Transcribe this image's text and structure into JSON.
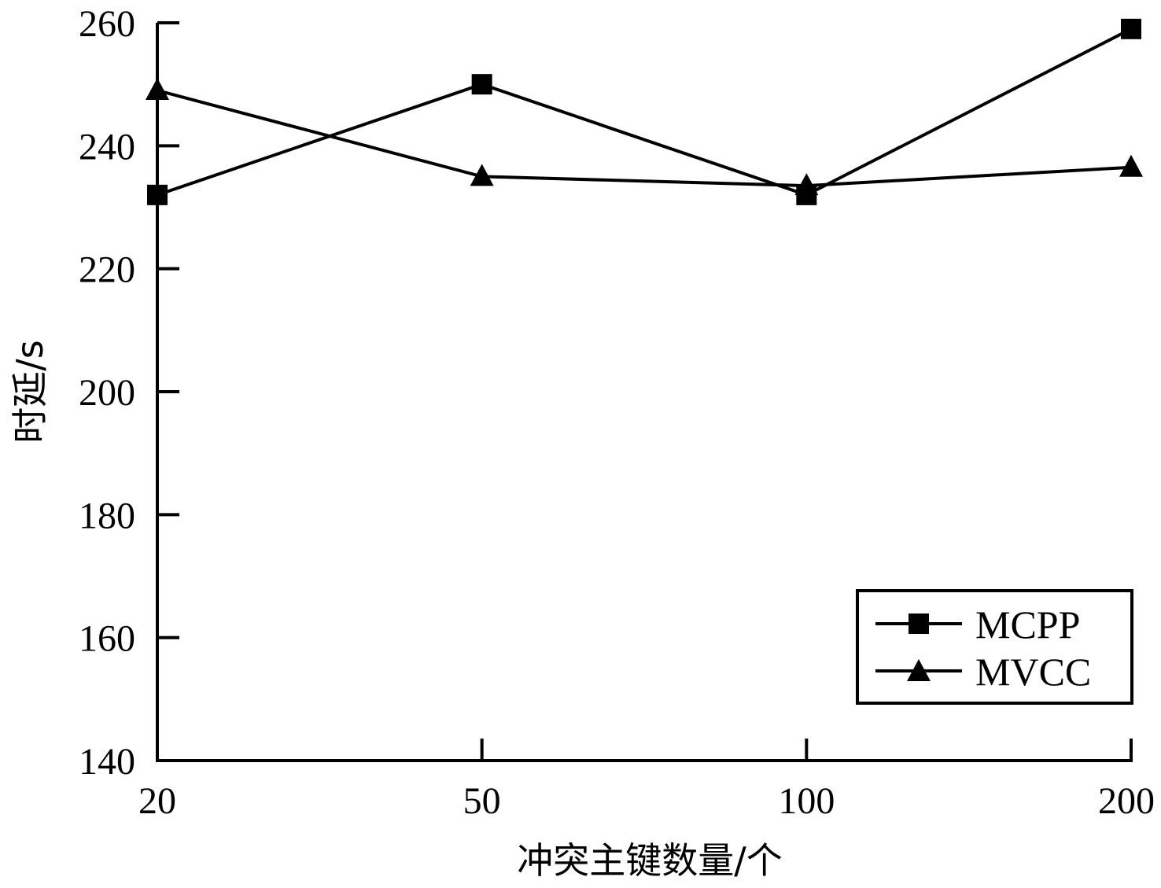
{
  "chart_data": {
    "type": "line",
    "title": "",
    "xlabel": "冲突主键数量/个",
    "ylabel": "时延/s",
    "categories": [
      "20",
      "50",
      "100",
      "200"
    ],
    "ylim": [
      140,
      260
    ],
    "yticks": [
      140,
      160,
      180,
      200,
      220,
      240,
      260
    ],
    "grid": false,
    "legend_position": "bottom-right",
    "series": [
      {
        "name": "MCPP",
        "marker": "square",
        "values": [
          232,
          250,
          232,
          259
        ]
      },
      {
        "name": "MVCC",
        "marker": "triangle",
        "values": [
          249,
          235,
          233.5,
          236.5
        ]
      }
    ],
    "colors": {
      "line": "#000000",
      "background": "#ffffff"
    }
  }
}
